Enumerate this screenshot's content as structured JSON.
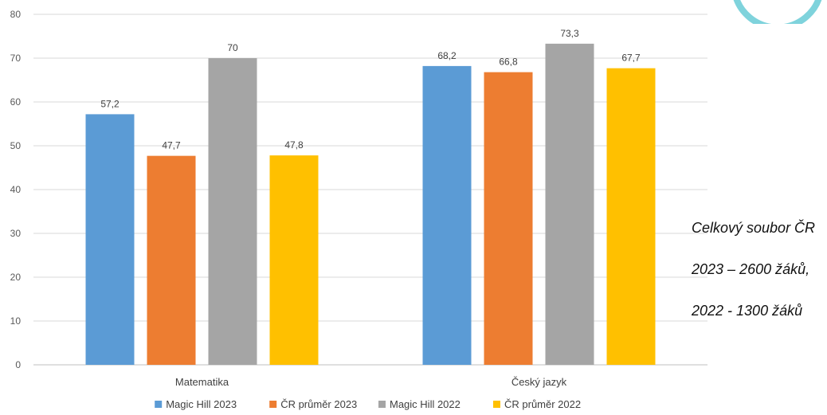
{
  "chart_data": {
    "type": "bar",
    "categories": [
      "Matematika",
      "Český jazyk"
    ],
    "series": [
      {
        "name": "Magic Hill 2023",
        "values": [
          57.2,
          68.2
        ],
        "labels": [
          "57,2",
          "68,2"
        ],
        "color": "#5b9bd5"
      },
      {
        "name": "ČR průměr 2023",
        "values": [
          47.7,
          66.8
        ],
        "labels": [
          "47,7",
          "66,8"
        ],
        "color": "#ed7d31"
      },
      {
        "name": "Magic Hill 2022",
        "values": [
          70,
          73.3
        ],
        "labels": [
          "70",
          "73,3"
        ],
        "color": "#a5a5a5"
      },
      {
        "name": "ČR průměr 2022",
        "values": [
          47.8,
          67.7
        ],
        "labels": [
          "47,8",
          "67,7"
        ],
        "color": "#ffc000"
      }
    ],
    "ylim": [
      0,
      80
    ],
    "yticks": [
      0,
      10,
      20,
      30,
      40,
      50,
      60,
      70,
      80
    ],
    "grid": true,
    "legend": "bottom",
    "title": "",
    "xlabel": "",
    "ylabel": ""
  },
  "note": {
    "lines": [
      "Celkový soubor ČR",
      "2023 – 2600 žáků,",
      "2022 -  1300 žáků"
    ]
  },
  "logo": {
    "color": "#7fd3dc"
  }
}
